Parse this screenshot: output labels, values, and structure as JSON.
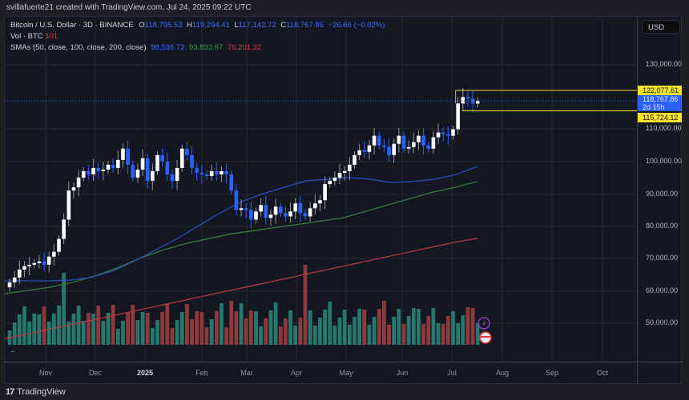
{
  "header": {
    "credit": "svillafuerte21 created with TradingView.com, Jul 24, 2025 09:22 UTC"
  },
  "legend": {
    "symbol": "Bitcoin / U.S. Dollar · 3D · BINANCE",
    "open_label": "O",
    "open": "118,795.53",
    "high_label": "H",
    "high": "119,294.41",
    "low_label": "L",
    "low": "117,142.72",
    "close_label": "C",
    "close": "118,767.86",
    "change": "−26.66 (−0.02%)",
    "vol_label": "Vol · BTC",
    "vol": "101",
    "sma_label": "SMAs (50, close, 100, close, 200, close)",
    "sma50": "98,536.72",
    "sma100": "93,833.67",
    "sma200": "76,201.32"
  },
  "currency_button": "USD",
  "more_button": "...",
  "footer": {
    "logo": "17",
    "brand": "TradingView"
  },
  "colors": {
    "background": "#131722",
    "up_candle": "#ffffff",
    "down_candle": "#2962ff",
    "sma50": "#2a4fb8",
    "sma100": "#3a7a3e",
    "sma200": "#b33a3f",
    "volume_up": "#26786f",
    "volume_down": "#8f3a3a",
    "range_box": "#d8c53a",
    "price_tag_yellow": "#f7e12a",
    "price_tag_current": "#2962ff"
  },
  "price_axis": {
    "ticks": [
      "130,000.00",
      "110,000.00",
      "100,000.00",
      "90,000.00",
      "80,000.00",
      "70,000.00",
      "60,000.00",
      "50,000.00"
    ],
    "range_high_tag": "122,077.61",
    "current_tag": "118,767.86",
    "countdown_tag": "2d 15h",
    "range_low_tag": "115,724.12"
  },
  "time_axis": {
    "labels": [
      "Nov",
      "Dec",
      "2025",
      "Feb",
      "Mar",
      "Apr",
      "May",
      "Jun",
      "Jul",
      "Aug",
      "Sep",
      "Oct"
    ]
  },
  "chart_data": {
    "type": "candlestick",
    "title": "Bitcoin / U.S. Dollar · 3D · BINANCE",
    "xlabel": "",
    "ylabel": "USD",
    "ylim": [
      44000,
      136000
    ],
    "x_range": [
      "Oct 2024",
      "Oct 2025"
    ],
    "grid": true,
    "legend_position": "top-left",
    "ohlc_last": {
      "open": 118795.53,
      "high": 119294.41,
      "low": 117142.72,
      "close": 118767.86,
      "change": -26.66,
      "change_pct": -0.02
    },
    "range_box": {
      "high": 122077.61,
      "low": 115724.12,
      "label_countdown": "2d 15h"
    },
    "candles_approx_close": [
      62500,
      64000,
      66500,
      67500,
      68000,
      68500,
      69000,
      68000,
      70500,
      72000,
      76000,
      82000,
      91000,
      92000,
      95000,
      97000,
      96000,
      98000,
      97000,
      97500,
      99000,
      98000,
      100500,
      104000,
      99000,
      95000,
      97500,
      101000,
      94000,
      97000,
      102000,
      100000,
      96000,
      94000,
      98000,
      104000,
      102000,
      98000,
      96500,
      96000,
      95500,
      97000,
      96000,
      97000,
      96000,
      91000,
      85000,
      85500,
      85000,
      82000,
      84500,
      86500,
      82500,
      83500,
      86000,
      84000,
      83000,
      84500,
      87000,
      84000,
      83000,
      85500,
      87000,
      88000,
      93000,
      94000,
      95000,
      96500,
      97000,
      99000,
      102000,
      103500,
      103000,
      105000,
      108000,
      105000,
      104500,
      102000,
      105500,
      108000,
      104000,
      104500,
      106000,
      108000,
      105000,
      104000,
      107500,
      109000,
      108500,
      108000,
      110000,
      118000,
      120000,
      119500,
      118000,
      118767.86
    ],
    "series": [
      {
        "name": "SMA 50",
        "last": 98536.72,
        "values_approx": [
          63000,
          63000,
          63000,
          63200,
          64000,
          66000,
          69000,
          72500,
          76000,
          80000,
          84000,
          87500,
          90000,
          92000,
          94000,
          94500,
          95000,
          94500,
          93500,
          93800,
          94500,
          96000,
          98500
        ]
      },
      {
        "name": "SMA 100",
        "last": 93833.67,
        "values_approx": [
          59000,
          60000,
          61000,
          62500,
          64500,
          67000,
          70000,
          72500,
          74500,
          76000,
          77500,
          78500,
          79500,
          80500,
          81500,
          82500,
          84500,
          86500,
          88500,
          90500,
          92000,
          93833
        ]
      },
      {
        "name": "SMA 200",
        "last": 76201.32,
        "values_approx": [
          45000,
          46500,
          48000,
          49500,
          51000,
          52500,
          54000,
          55500,
          57000,
          58500,
          60000,
          61500,
          63000,
          64500,
          66000,
          67500,
          69000,
          70500,
          72000,
          73500,
          75000,
          76201
        ]
      },
      {
        "name": "Volume (BTC)",
        "last": 101
      }
    ],
    "volume_note": "Volume histogram at bottom, teal for up periods, red for down periods; spikes in early Nov 2024 and early Apr 2025."
  }
}
